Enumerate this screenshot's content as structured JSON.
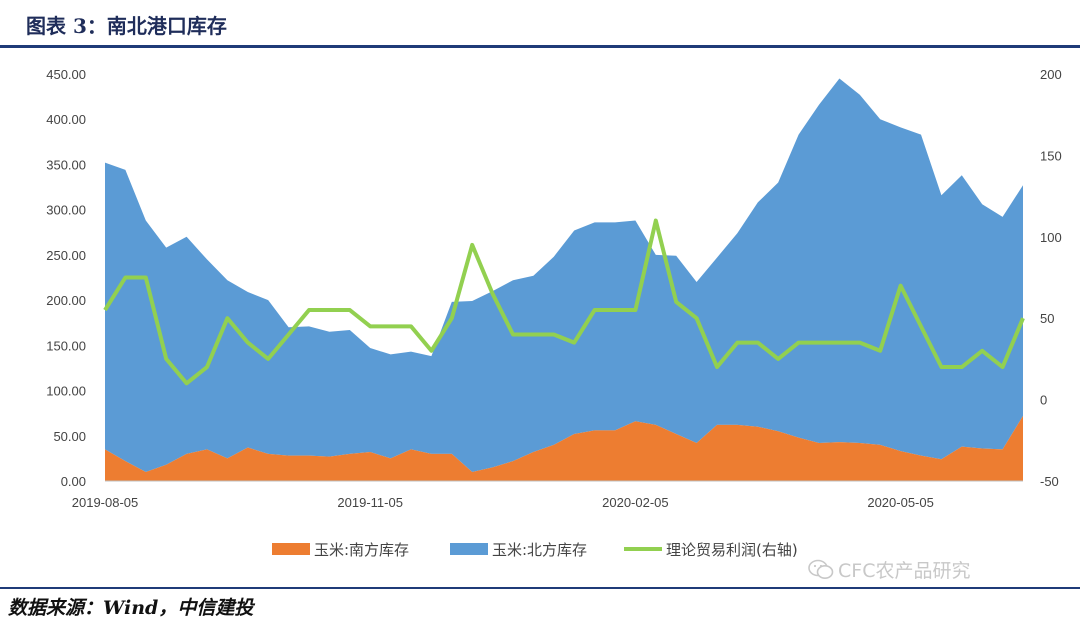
{
  "header": {
    "title": "图表 3：南北港口库存"
  },
  "footer": {
    "source": "数据来源：Wind，中信建投"
  },
  "watermark": {
    "text": "CFC农产品研究",
    "icon": "wechat-icon"
  },
  "colors": {
    "south": "#ED7D31",
    "north": "#5B9BD5",
    "profit": "#92D050",
    "rule": "#1f3b78"
  },
  "chart_data": {
    "type": "area",
    "title": "",
    "legend_position": "bottom",
    "grid": false,
    "x_ticks": [
      "2019-08-05",
      "2019-11-05",
      "2020-02-05",
      "2020-05-05"
    ],
    "y_left": {
      "min": 0,
      "max": 450,
      "ticks": [
        "0.00",
        "50.00",
        "100.00",
        "150.00",
        "200.00",
        "250.00",
        "300.00",
        "350.00",
        "400.00",
        "450.00"
      ]
    },
    "y_right": {
      "min": -50,
      "max": 200,
      "ticks": [
        "-50",
        "0",
        "50",
        "100",
        "150",
        "200"
      ]
    },
    "x": [
      "2019-08-05",
      "2019-08-12",
      "2019-08-19",
      "2019-08-26",
      "2019-09-02",
      "2019-09-09",
      "2019-09-16",
      "2019-09-23",
      "2019-09-30",
      "2019-10-07",
      "2019-10-14",
      "2019-10-21",
      "2019-10-28",
      "2019-11-04",
      "2019-11-11",
      "2019-11-18",
      "2019-11-25",
      "2019-12-02",
      "2019-12-09",
      "2019-12-16",
      "2019-12-23",
      "2019-12-30",
      "2020-01-06",
      "2020-01-13",
      "2020-01-20",
      "2020-01-27",
      "2020-02-03",
      "2020-02-10",
      "2020-02-17",
      "2020-02-24",
      "2020-03-02",
      "2020-03-09",
      "2020-03-16",
      "2020-03-23",
      "2020-03-30",
      "2020-04-06",
      "2020-04-13",
      "2020-04-20",
      "2020-04-27",
      "2020-05-04",
      "2020-05-11",
      "2020-05-18",
      "2020-05-25",
      "2020-06-01",
      "2020-06-08",
      "2020-06-15"
    ],
    "series": [
      {
        "name": "玉米:南方库存",
        "kind": "area",
        "axis": "left",
        "values": [
          35,
          22,
          10,
          18,
          30,
          35,
          25,
          37,
          30,
          28,
          28,
          27,
          30,
          32,
          25,
          35,
          30,
          30,
          10,
          15,
          22,
          32,
          40,
          52,
          56,
          56,
          66,
          62,
          52,
          42,
          62,
          62,
          60,
          55,
          48,
          42,
          43,
          42,
          40,
          33,
          28,
          24,
          38,
          36,
          35,
          72
        ]
      },
      {
        "name": "玉米:北方库存",
        "kind": "area",
        "axis": "left",
        "values": [
          317,
          322,
          278,
          240,
          240,
          210,
          197,
          172,
          170,
          142,
          143,
          138,
          137,
          115,
          115,
          108,
          108,
          168,
          189,
          195,
          200,
          195,
          208,
          225,
          230,
          230,
          222,
          188,
          197,
          178,
          185,
          212,
          248,
          275,
          335,
          374,
          402,
          385,
          360,
          358,
          355,
          292,
          300,
          270,
          257,
          255
        ]
      },
      {
        "name": "理论贸易利润(右轴)",
        "kind": "line",
        "axis": "right",
        "values": [
          55,
          75,
          75,
          25,
          10,
          20,
          50,
          35,
          25,
          40,
          55,
          55,
          55,
          45,
          45,
          45,
          30,
          50,
          95,
          65,
          40,
          40,
          40,
          35,
          55,
          55,
          55,
          110,
          60,
          50,
          20,
          35,
          35,
          25,
          35,
          35,
          35,
          35,
          30,
          70,
          45,
          20,
          20,
          30,
          20,
          50
        ]
      }
    ]
  }
}
